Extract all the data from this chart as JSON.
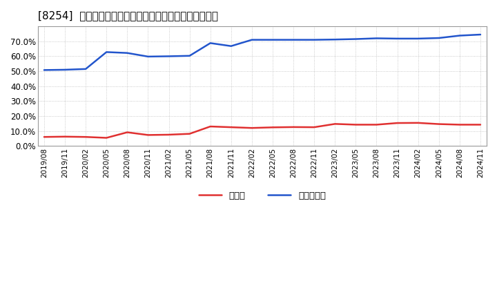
{
  "title": "[8254]  現預金、有利子負債の総資産に対する比率の推移",
  "x_labels": [
    "2019/08",
    "2019/11",
    "2020/02",
    "2020/05",
    "2020/08",
    "2020/11",
    "2021/02",
    "2021/05",
    "2021/08",
    "2021/11",
    "2022/02",
    "2022/05",
    "2022/08",
    "2022/11",
    "2023/02",
    "2023/05",
    "2023/08",
    "2023/11",
    "2024/02",
    "2024/05",
    "2024/08",
    "2024/11"
  ],
  "cash": [
    0.061,
    0.063,
    0.061,
    0.055,
    0.092,
    0.074,
    0.076,
    0.082,
    0.131,
    0.126,
    0.121,
    0.125,
    0.127,
    0.126,
    0.148,
    0.143,
    0.143,
    0.154,
    0.155,
    0.147,
    0.143,
    0.143
  ],
  "debt": [
    0.508,
    0.51,
    0.515,
    0.628,
    0.622,
    0.598,
    0.6,
    0.603,
    0.688,
    0.668,
    0.71,
    0.71,
    0.71,
    0.71,
    0.712,
    0.715,
    0.72,
    0.718,
    0.718,
    0.722,
    0.738,
    0.745
  ],
  "cash_color": "#e03030",
  "debt_color": "#2255cc",
  "bg_color": "#ffffff",
  "plot_bg_color": "#ffffff",
  "grid_color": "#aaaaaa",
  "legend_cash": "現預金",
  "legend_debt": "有利子負債",
  "ylim": [
    0.0,
    0.8
  ],
  "yticks": [
    0.0,
    0.1,
    0.2,
    0.3,
    0.4,
    0.5,
    0.6,
    0.7
  ],
  "line_width": 1.8
}
